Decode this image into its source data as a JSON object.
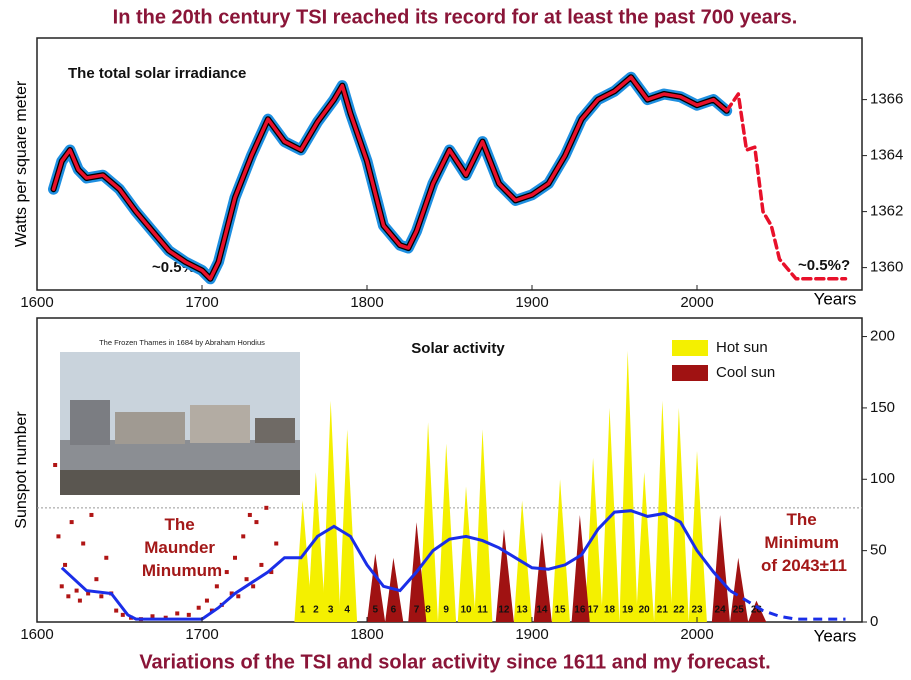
{
  "title": "In the 20th century TSI reached its record for at least the past 700 years.",
  "caption": "Variations of the TSI and solar activity since 1611 and my forecast.",
  "chart_data": [
    {
      "type": "line",
      "title": "The total solar irradiance",
      "ylabel": "Watts per square meter",
      "xlabel": "Years",
      "annotations": [
        "~0.5%",
        "~0.5%?"
      ],
      "xlim": [
        1600,
        2100
      ],
      "xticks": [
        1600,
        1700,
        1800,
        1900,
        2000
      ],
      "ylim": [
        1359.2,
        1368.2
      ],
      "yticks": [
        1360,
        1362,
        1364,
        1366
      ],
      "band_colors": [
        "#1e8fe0",
        "#000000"
      ],
      "series": [
        {
          "color": "#e8102a",
          "dashed": false,
          "x": [
            1610,
            1615,
            1620,
            1625,
            1630,
            1640,
            1650,
            1660,
            1670,
            1680,
            1690,
            1700,
            1705,
            1710,
            1720,
            1730,
            1740,
            1750,
            1760,
            1770,
            1780,
            1785,
            1790,
            1800,
            1810,
            1820,
            1825,
            1830,
            1840,
            1850,
            1860,
            1870,
            1880,
            1890,
            1900,
            1910,
            1920,
            1930,
            1940,
            1950,
            1960,
            1970,
            1980,
            1990,
            2000,
            2010,
            2018
          ],
          "values": [
            1362.8,
            1363.8,
            1364.2,
            1363.5,
            1363.2,
            1363.3,
            1362.8,
            1362.0,
            1361.3,
            1360.6,
            1360.2,
            1359.9,
            1359.6,
            1360.2,
            1362.5,
            1364.0,
            1365.3,
            1364.5,
            1364.2,
            1365.2,
            1366.0,
            1366.5,
            1365.5,
            1363.8,
            1361.5,
            1360.8,
            1360.7,
            1361.3,
            1363.0,
            1364.2,
            1363.3,
            1364.5,
            1363.0,
            1362.4,
            1362.6,
            1363.0,
            1364.0,
            1365.3,
            1366.0,
            1366.3,
            1366.8,
            1366.0,
            1366.2,
            1366.1,
            1365.8,
            1366.0,
            1365.6
          ]
        },
        {
          "color": "#e8102a",
          "dashed": true,
          "x": [
            2018,
            2025,
            2030,
            2035,
            2040,
            2045,
            2050,
            2060,
            2070,
            2080,
            2090
          ],
          "values": [
            1365.6,
            1366.2,
            1364.2,
            1364.3,
            1362.0,
            1361.5,
            1360.3,
            1359.6,
            1359.6,
            1359.6,
            1359.6
          ]
        }
      ]
    },
    {
      "type": "sunspot",
      "title": "Solar activity",
      "ylabel": "Sunspot number",
      "xlabel": "Years",
      "image_caption": "The Frozen Thames in 1684 by Abraham Hondius",
      "annotations": [
        [
          "The",
          "Maunder",
          "Minumum"
        ],
        [
          "The",
          "Minimum",
          "of 2043±11"
        ]
      ],
      "xlim": [
        1600,
        2100
      ],
      "xticks": [
        1600,
        1700,
        1800,
        1900,
        2000
      ],
      "ylim": [
        0,
        213
      ],
      "yticks": [
        0,
        50,
        100,
        150,
        200
      ],
      "reference_line": 80,
      "series": [
        {
          "name": "Hot sun",
          "color": "#f4f000",
          "labels": [
            "1",
            "2",
            "3",
            "4",
            "8",
            "9",
            "10",
            "11",
            "13",
            "15",
            "17",
            "18",
            "19",
            "20",
            "21",
            "22",
            "23"
          ],
          "x": [
            1761,
            1769,
            1778,
            1788,
            1837,
            1848,
            1860,
            1870,
            1894,
            1917,
            1937,
            1947,
            1958,
            1968,
            1979,
            1989,
            2000
          ],
          "values": [
            85,
            105,
            155,
            135,
            140,
            125,
            95,
            135,
            85,
            100,
            115,
            150,
            190,
            105,
            155,
            150,
            120
          ]
        },
        {
          "name": "Cool sun",
          "color": "#a01212",
          "labels": [
            "5",
            "6",
            "7",
            "12",
            "14",
            "16",
            "24",
            "25",
            "26"
          ],
          "x": [
            1805,
            1816,
            1830,
            1883,
            1906,
            1929,
            2014,
            2025,
            2036
          ],
          "values": [
            48,
            45,
            70,
            65,
            63,
            75,
            75,
            45,
            15
          ]
        }
      ],
      "points": {
        "color": "#b01515",
        "x": [
          1611,
          1613,
          1615,
          1617,
          1619,
          1621,
          1624,
          1626,
          1628,
          1631,
          1633,
          1636,
          1639,
          1642,
          1645,
          1648,
          1652,
          1657,
          1663,
          1670,
          1678,
          1685,
          1692,
          1698,
          1703,
          1706,
          1709,
          1712,
          1715,
          1718,
          1720,
          1722,
          1725,
          1727,
          1729,
          1731,
          1733,
          1736,
          1739,
          1742,
          1745
        ],
        "values": [
          110,
          60,
          25,
          40,
          18,
          70,
          22,
          15,
          55,
          20,
          75,
          30,
          18,
          45,
          20,
          8,
          5,
          3,
          2,
          4,
          3,
          6,
          5,
          10,
          15,
          8,
          25,
          12,
          35,
          20,
          45,
          18,
          60,
          30,
          75,
          25,
          70,
          40,
          80,
          35,
          55
        ]
      },
      "trend": {
        "color": "#1a2ee8",
        "x": [
          1615,
          1630,
          1645,
          1655,
          1660,
          1700,
          1710,
          1720,
          1740,
          1750,
          1760,
          1770,
          1780,
          1790,
          1800,
          1810,
          1820,
          1830,
          1840,
          1850,
          1860,
          1870,
          1880,
          1890,
          1900,
          1910,
          1920,
          1930,
          1940,
          1950,
          1960,
          1970,
          1980,
          1990,
          2000,
          2010,
          2020
        ],
        "values": [
          38,
          22,
          20,
          5,
          2,
          2,
          10,
          20,
          35,
          45,
          45,
          60,
          67,
          60,
          40,
          25,
          22,
          35,
          50,
          58,
          60,
          57,
          52,
          45,
          38,
          37,
          40,
          47,
          65,
          77,
          78,
          74,
          76,
          70,
          50,
          35,
          22
        ]
      },
      "forecast": {
        "color": "#1a2ee8",
        "x": [
          2020,
          2030,
          2040,
          2050,
          2060,
          2090
        ],
        "values": [
          22,
          15,
          8,
          4,
          2,
          2
        ]
      }
    }
  ]
}
